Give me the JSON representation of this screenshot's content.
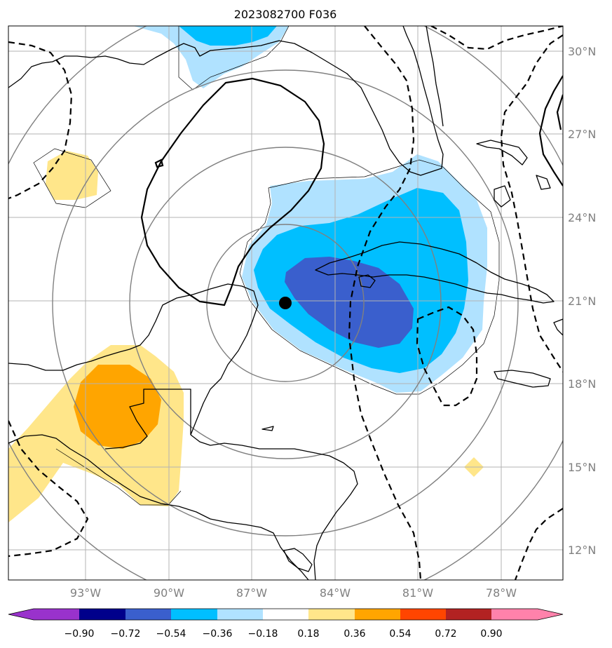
{
  "title": "2023082700 F036",
  "map": {
    "lon_range": [
      -95.2,
      -75.2
    ],
    "lat_range": [
      10.9,
      30.9
    ],
    "lon_ticks": [
      {
        "value": -93,
        "label": "93°W"
      },
      {
        "value": -90,
        "label": "90°W"
      },
      {
        "value": -87,
        "label": "87°W"
      },
      {
        "value": -84,
        "label": "84°W"
      },
      {
        "value": -81,
        "label": "81°W"
      },
      {
        "value": -78,
        "label": "78°W"
      }
    ],
    "lat_ticks": [
      {
        "value": 30,
        "label": "30°N"
      },
      {
        "value": 27,
        "label": "27°N"
      },
      {
        "value": 24,
        "label": "24°N"
      },
      {
        "value": 21,
        "label": "21°N"
      },
      {
        "value": 18,
        "label": "18°N"
      },
      {
        "value": 15,
        "label": "15°N"
      },
      {
        "value": 12,
        "label": "12°N"
      }
    ],
    "storm_center": {
      "lon": -85.8,
      "lat": 20.9
    },
    "range_rings_deg": [
      3,
      6,
      9,
      12
    ]
  },
  "colorbar": {
    "levels": [
      "−0.90",
      "−0.72",
      "−0.54",
      "−0.36",
      "−0.18",
      "0.18",
      "0.36",
      "0.54",
      "0.72",
      "0.90"
    ],
    "colors": [
      "#9932cc",
      "#00008b",
      "#3a5fcd",
      "#00bfff",
      "#b0e2ff",
      "#ffffff",
      "#ffe68a",
      "#ffa500",
      "#ff4500",
      "#b22222",
      "#ff82ab"
    ]
  },
  "colors": {
    "grid": "#b3b3b3",
    "ring": "#808080",
    "coast": "#000000"
  }
}
